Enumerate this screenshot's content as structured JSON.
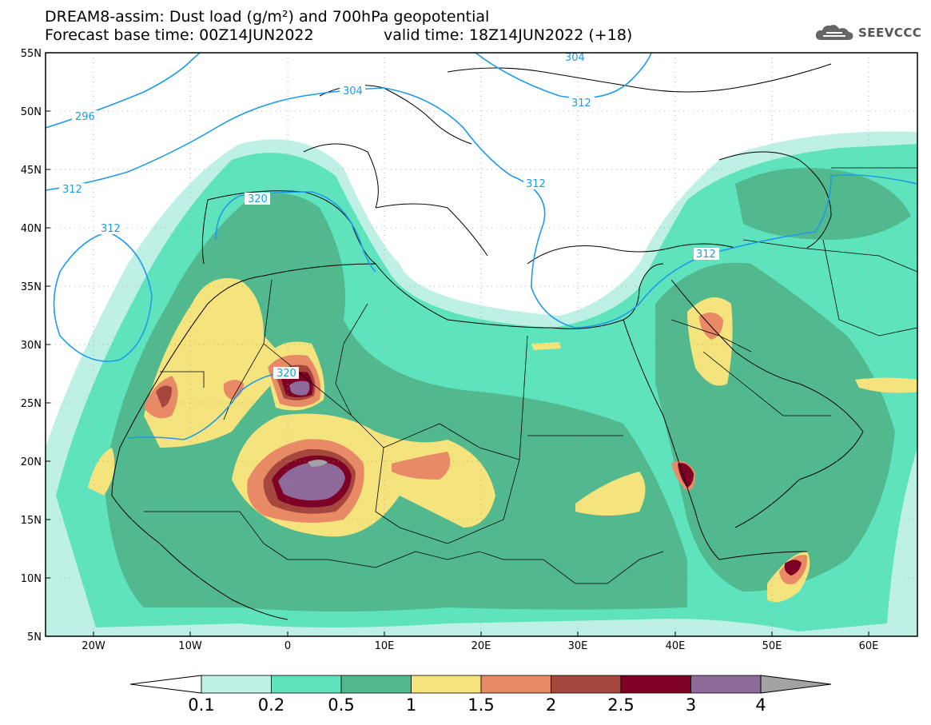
{
  "header": {
    "line1": "DREAM8-assim: Dust load (g/m²) and 700hPa geopotential",
    "line2_left": "Forecast base time: 00Z14JUN2022",
    "line2_right": "valid time: 18Z14JUN2022 (+18)"
  },
  "logo": {
    "text": "SEEVCCC",
    "icon": "cloud-icon"
  },
  "map": {
    "lon_range": [
      -25,
      65
    ],
    "lat_range": [
      5,
      55
    ],
    "lon_ticks": [
      "20W",
      "10W",
      "0",
      "10E",
      "20E",
      "30E",
      "40E",
      "50E",
      "60E"
    ],
    "lat_ticks": [
      "55N",
      "50N",
      "45N",
      "40N",
      "35N",
      "30N",
      "25N",
      "20N",
      "15N",
      "10N",
      "5N"
    ],
    "grid": true,
    "contour_labels": [
      "296",
      "304",
      "304",
      "312",
      "312",
      "312",
      "312",
      "312",
      "320",
      "320"
    ]
  },
  "colorbar": {
    "labels": [
      "0.1",
      "0.2",
      "0.5",
      "1",
      "1.5",
      "2",
      "2.5",
      "3",
      "4"
    ],
    "colors": [
      "#bff0e6",
      "#5ee3bd",
      "#52b88e",
      "#f5e37e",
      "#e98a67",
      "#a6473e",
      "#7e0025",
      "#8e6a9b",
      "#a3a3a3"
    ]
  }
}
